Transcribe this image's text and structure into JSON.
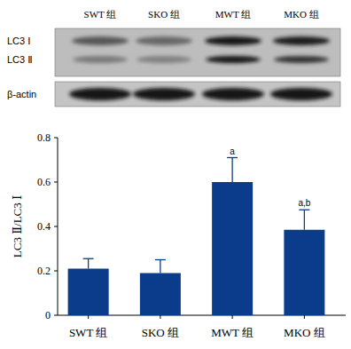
{
  "chart_data": {
    "type": "bar",
    "categories": [
      "SWT 组",
      "SKO 组",
      "MWT 组",
      "MKO 组"
    ],
    "values": [
      0.21,
      0.19,
      0.6,
      0.385
    ],
    "errors": [
      0.045,
      0.06,
      0.11,
      0.09
    ],
    "annotations": [
      null,
      null,
      "a",
      "a,b"
    ],
    "y_label": "LC3 Ⅱ/LC3 Ⅰ",
    "color": "#0b3c8c",
    "ylim": [
      0,
      0.8
    ],
    "yticks": [
      0,
      0.2,
      0.4,
      0.6,
      0.8
    ],
    "grid": false
  },
  "blot": {
    "lanes": [
      "SWT 组",
      "SKO 组",
      "MWT 组",
      "MKO 组"
    ],
    "rows": [
      "LC3 Ⅰ",
      "LC3 Ⅱ",
      "β-actin"
    ]
  }
}
